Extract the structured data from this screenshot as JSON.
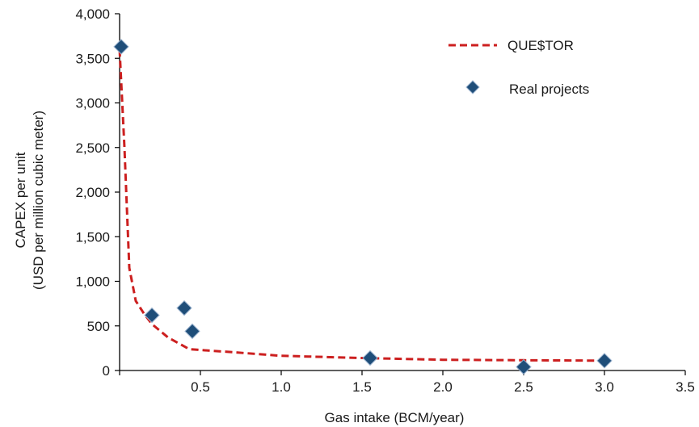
{
  "chart_data": {
    "type": "line",
    "xlabel": "Gas intake (BCM/year)",
    "ylabel": [
      "CAPEX per unit",
      "(USD per million cubic meter)"
    ],
    "xlim": [
      0,
      3.5
    ],
    "ylim": [
      0,
      4000
    ],
    "x_ticks": [
      0.5,
      1.0,
      1.5,
      2.0,
      2.5,
      3.0,
      3.5
    ],
    "x_tick_labels": [
      "0.5",
      "1.0",
      "1.5",
      "2.0",
      "2.5",
      "3.0",
      "3.5"
    ],
    "y_ticks": [
      0,
      500,
      1000,
      1500,
      2000,
      2500,
      3000,
      3500,
      4000
    ],
    "y_tick_labels": [
      "0",
      "500",
      "1,000",
      "1,500",
      "2,000",
      "2,500",
      "3,000",
      "3,500",
      "4,000"
    ],
    "grid": false,
    "legend_position": "top-right",
    "series": [
      {
        "name": "QUE$TOR",
        "kind": "dashed-line",
        "color": "#cc1f1f",
        "x": [
          0.0,
          0.03,
          0.06,
          0.1,
          0.15,
          0.2,
          0.3,
          0.43,
          0.5,
          0.7,
          1.0,
          1.5,
          2.0,
          2.5,
          3.0
        ],
        "y": [
          3600,
          2500,
          1150,
          780,
          640,
          520,
          370,
          240,
          230,
          205,
          165,
          140,
          120,
          115,
          110
        ]
      },
      {
        "name": "Real projects",
        "kind": "markers",
        "color": "#1f4e79",
        "x": [
          0.01,
          0.2,
          0.4,
          0.45,
          1.55,
          2.5,
          3.0
        ],
        "y": [
          3630,
          620,
          700,
          440,
          140,
          40,
          110
        ]
      }
    ]
  }
}
